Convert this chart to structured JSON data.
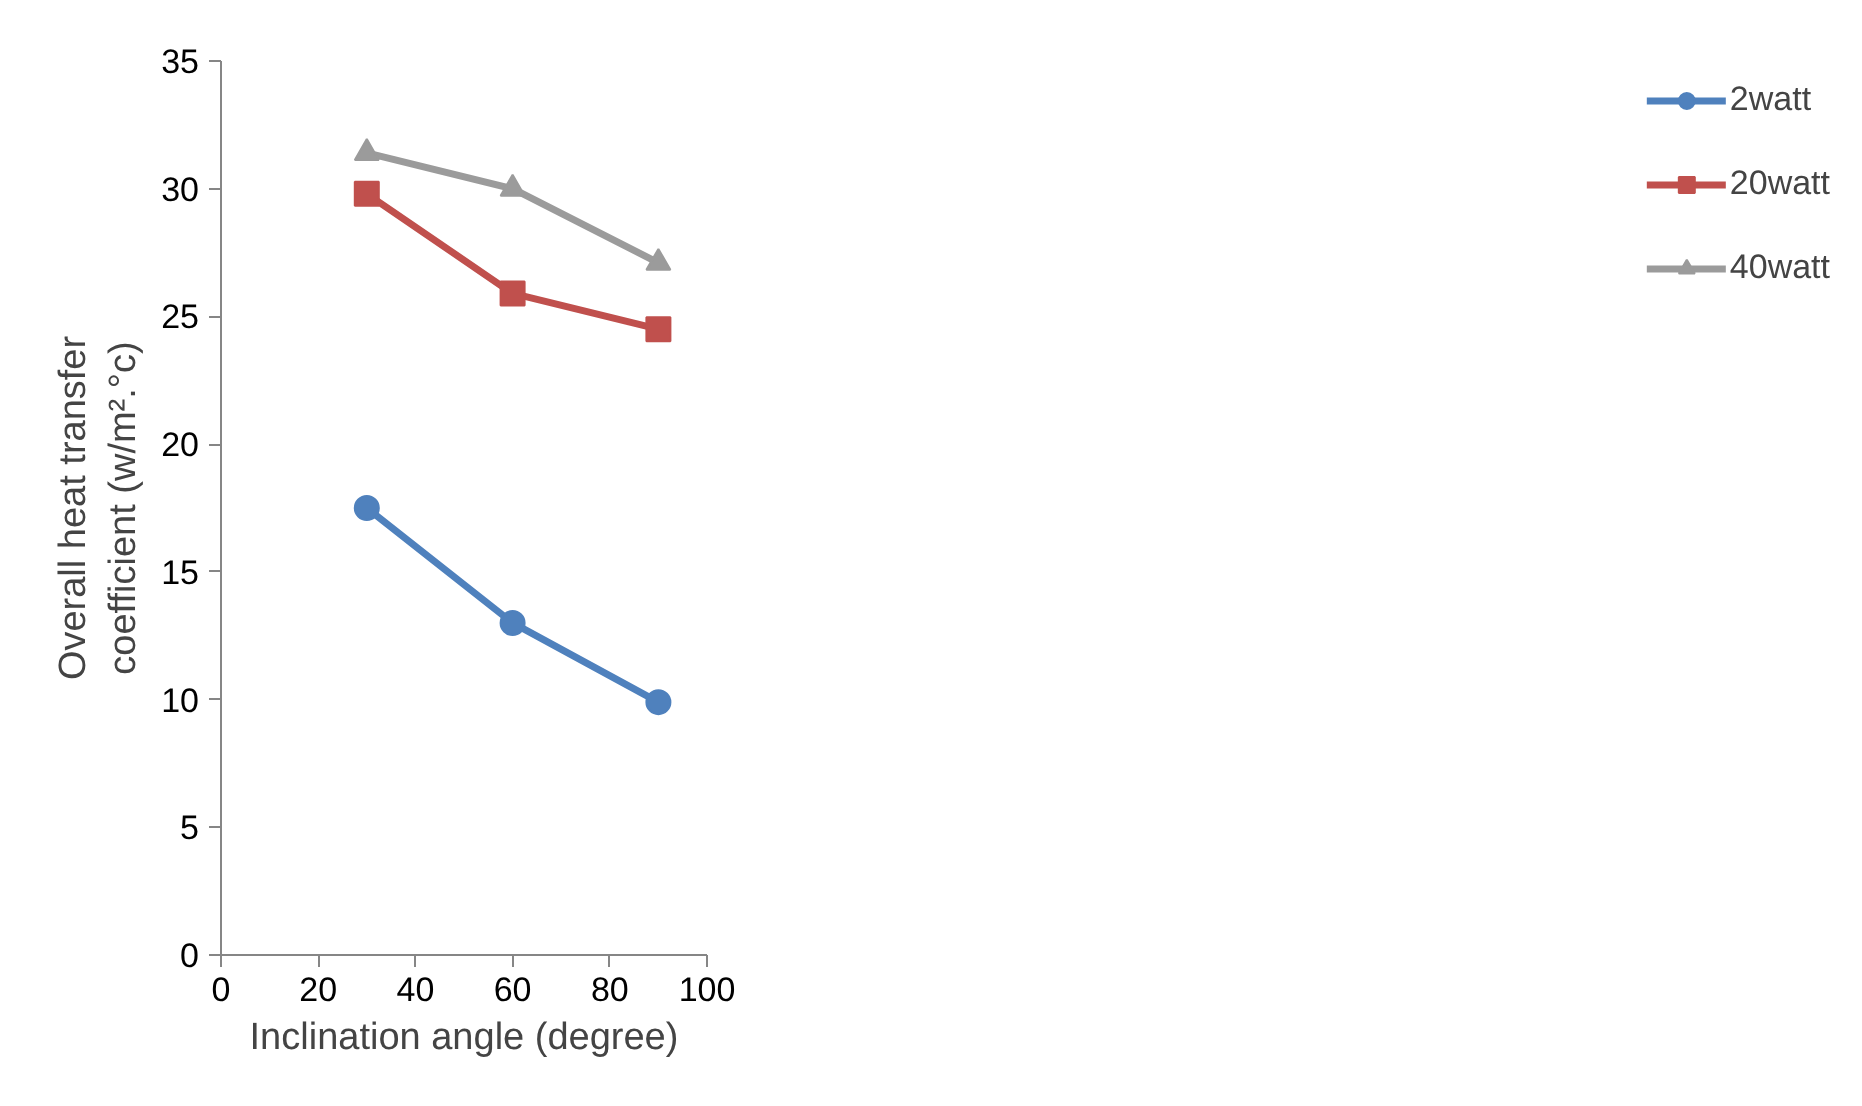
{
  "chart_data": {
    "type": "line",
    "xlabel": "Inclination angle (degree)",
    "ylabel": "Overall heat transfer\ncoefficient (w/m².°c)",
    "xlim": [
      0,
      100
    ],
    "xticks": [
      0,
      20,
      40,
      60,
      80,
      100
    ],
    "ylim": [
      0,
      35
    ],
    "yticks": [
      0,
      5,
      10,
      15,
      20,
      25,
      30,
      35
    ],
    "x": [
      30,
      60,
      90
    ],
    "legend": "right",
    "grid": false,
    "line_style": "solid",
    "series": [
      {
        "name": "2watt",
        "color": "#4f81bd",
        "marker": "circle",
        "values": [
          17.5,
          13.0,
          9.9
        ]
      },
      {
        "name": "20watt",
        "color": "#c0504d",
        "marker": "square",
        "values": [
          29.8,
          25.9,
          24.5
        ]
      },
      {
        "name": "40watt",
        "color": "#9b9b9b",
        "marker": "triangle",
        "values": [
          31.4,
          30.0,
          27.1
        ]
      }
    ]
  }
}
